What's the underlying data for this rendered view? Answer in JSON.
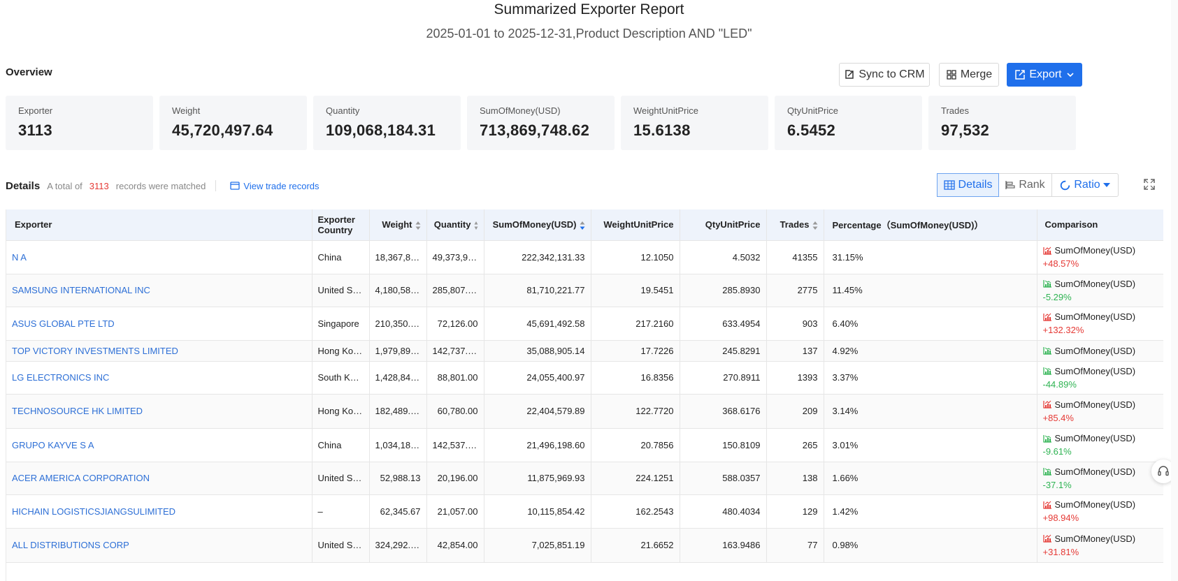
{
  "report": {
    "title": "Summarized Exporter Report",
    "subtitle": "2025-01-01 to 2025-12-31,Product Description AND \"LED\""
  },
  "overview": {
    "label": "Overview",
    "buttons": {
      "sync_crm": "Sync to CRM",
      "merge": "Merge",
      "export": "Export"
    },
    "stats": [
      {
        "label": "Exporter",
        "value": "3113"
      },
      {
        "label": "Weight",
        "value": "45,720,497.64"
      },
      {
        "label": "Quantity",
        "value": "109,068,184.31"
      },
      {
        "label": "SumOfMoney(USD)",
        "value": "713,869,748.62"
      },
      {
        "label": "WeightUnitPrice",
        "value": "15.6138"
      },
      {
        "label": "QtyUnitPrice",
        "value": "6.5452"
      },
      {
        "label": "Trades",
        "value": "97,532"
      }
    ]
  },
  "details": {
    "label": "Details",
    "total_prefix": "A total of",
    "total_count": "3113",
    "total_suffix": "records were matched",
    "view_trade_records": "View trade records",
    "views": {
      "details": "Details",
      "rank": "Rank",
      "ratio": "Ratio"
    }
  },
  "table": {
    "headers": {
      "exporter": "Exporter",
      "country": "Exporter Country",
      "weight": "Weight",
      "quantity": "Quantity",
      "sum": "SumOfMoney(USD)",
      "wup": "WeightUnitPrice",
      "qup": "QtyUnitPrice",
      "trades": "Trades",
      "percentage": "Percentage（SumOfMoney(USD)）",
      "comparison": "Comparison"
    },
    "rows": [
      {
        "exporter": "N A",
        "country": "China",
        "weight": "18,367,82…",
        "quantity": "49,373,92…",
        "sum": "222,342,131.33",
        "wup": "12.1050",
        "qup": "4.5032",
        "trades": "41355",
        "pct": "31.15%",
        "cmp_label": "SumOfMoney(USD)",
        "cmp_change": "+48.57%",
        "trend": "up"
      },
      {
        "exporter": "SAMSUNG INTERNATIONAL INC",
        "country": "United St…",
        "weight": "4,180,589.…",
        "quantity": "285,807.00",
        "sum": "81,710,221.77",
        "wup": "19.5451",
        "qup": "285.8930",
        "trades": "2775",
        "pct": "11.45%",
        "cmp_label": "SumOfMoney(USD)",
        "cmp_change": "-5.29%",
        "trend": "down"
      },
      {
        "exporter": "ASUS GLOBAL PTE LTD",
        "country": "Singapore",
        "weight": "210,350.53",
        "quantity": "72,126.00",
        "sum": "45,691,492.58",
        "wup": "217.2160",
        "qup": "633.4954",
        "trades": "903",
        "pct": "6.40%",
        "cmp_label": "SumOfMoney(USD)",
        "cmp_change": "+132.32%",
        "trend": "up"
      },
      {
        "exporter": "TOP VICTORY INVESTMENTS LIMITED",
        "country": "Hong Kon…",
        "weight": "1,979,894.…",
        "quantity": "142,737.00",
        "sum": "35,088,905.14",
        "wup": "17.7226",
        "qup": "245.8291",
        "trades": "137",
        "pct": "4.92%",
        "cmp_label": "SumOfMoney(USD)",
        "cmp_change": "",
        "trend": "down"
      },
      {
        "exporter": "LG ELECTRONICS INC",
        "country": "South Kor…",
        "weight": "1,428,840.…",
        "quantity": "88,801.00",
        "sum": "24,055,400.97",
        "wup": "16.8356",
        "qup": "270.8911",
        "trades": "1393",
        "pct": "3.37%",
        "cmp_label": "SumOfMoney(USD)",
        "cmp_change": "-44.89%",
        "trend": "down"
      },
      {
        "exporter": "TECHNOSOURCE HK LIMITED",
        "country": "Hong Kon…",
        "weight": "182,489.28",
        "quantity": "60,780.00",
        "sum": "22,404,579.89",
        "wup": "122.7720",
        "qup": "368.6176",
        "trades": "209",
        "pct": "3.14%",
        "cmp_label": "SumOfMoney(USD)",
        "cmp_change": "+85.4%",
        "trend": "up"
      },
      {
        "exporter": "GRUPO KAYVE S A",
        "country": "China",
        "weight": "1,034,188.…",
        "quantity": "142,537.45",
        "sum": "21,496,198.60",
        "wup": "20.7856",
        "qup": "150.8109",
        "trades": "265",
        "pct": "3.01%",
        "cmp_label": "SumOfMoney(USD)",
        "cmp_change": "-9.61%",
        "trend": "down"
      },
      {
        "exporter": "ACER AMERICA CORPORATION",
        "country": "United St…",
        "weight": "52,988.13",
        "quantity": "20,196.00",
        "sum": "11,875,969.93",
        "wup": "224.1251",
        "qup": "588.0357",
        "trades": "138",
        "pct": "1.66%",
        "cmp_label": "SumOfMoney(USD)",
        "cmp_change": "-37.1%",
        "trend": "down"
      },
      {
        "exporter": "HICHAIN LOGISTICSJIANGSULIMITED",
        "country": "–",
        "weight": "62,345.67",
        "quantity": "21,057.00",
        "sum": "10,115,854.42",
        "wup": "162.2543",
        "qup": "480.4034",
        "trades": "129",
        "pct": "1.42%",
        "cmp_label": "SumOfMoney(USD)",
        "cmp_change": "+98.94%",
        "trend": "up"
      },
      {
        "exporter": "ALL DISTRIBUTIONS CORP",
        "country": "United St…",
        "weight": "324,292.74",
        "quantity": "42,854.00",
        "sum": "7,025,851.19",
        "wup": "21.6652",
        "qup": "163.9486",
        "trades": "77",
        "pct": "0.98%",
        "cmp_label": "SumOfMoney(USD)",
        "cmp_change": "+31.81%",
        "trend": "up"
      }
    ]
  },
  "colors": {
    "primary": "#1f6feb",
    "up": "#e53935",
    "down": "#2eb352",
    "header_bg": "#eef3fb",
    "card_bg": "#f5f6f8"
  }
}
